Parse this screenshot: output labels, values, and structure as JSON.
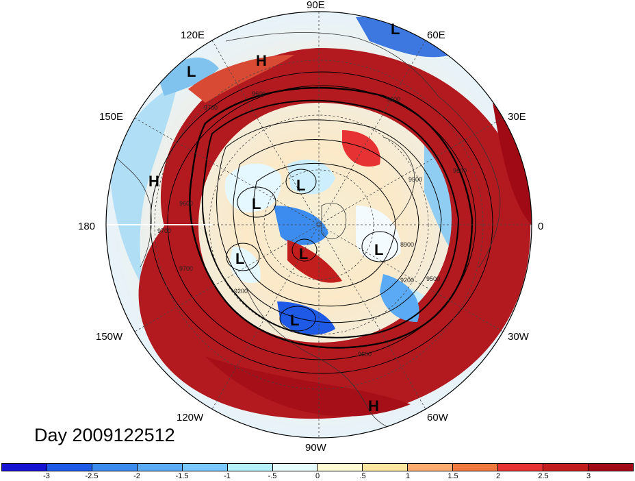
{
  "map": {
    "longitude_labels": [
      "90E",
      "60E",
      "30E",
      "0",
      "30W",
      "60W",
      "90W",
      "120W",
      "150W",
      "180",
      "150E",
      "120E"
    ],
    "contour_labels": [
      "9600",
      "9700",
      "9600",
      "9600",
      "9500",
      "8900",
      "9200",
      "9500",
      "9600",
      "9200",
      "9700",
      "9600",
      "9700"
    ],
    "pressure_centers": [
      {
        "type": "L"
      },
      {
        "type": "H"
      },
      {
        "type": "L"
      },
      {
        "type": "H"
      },
      {
        "type": "L"
      },
      {
        "type": "L"
      },
      {
        "type": "L"
      },
      {
        "type": "L"
      },
      {
        "type": "L"
      },
      {
        "type": "L"
      },
      {
        "type": "H"
      }
    ]
  },
  "day_label": "Day 2009122512",
  "colorbar": {
    "colors": [
      "#1414d2",
      "#1e5ae6",
      "#3c8cf0",
      "#5aaaf5",
      "#78c8ff",
      "#b4f0ff",
      "#e6ffff",
      "#fffad2",
      "#ffe6a0",
      "#ffaa6e",
      "#f0783c",
      "#e63232",
      "#c31e1e",
      "#a00a14"
    ],
    "tick_labels": [
      "-3",
      "-2.5",
      "-2",
      "-1.5",
      "-1",
      "-.5",
      "0",
      ".5",
      "1",
      "1.5",
      "2",
      "2.5",
      "3"
    ]
  }
}
